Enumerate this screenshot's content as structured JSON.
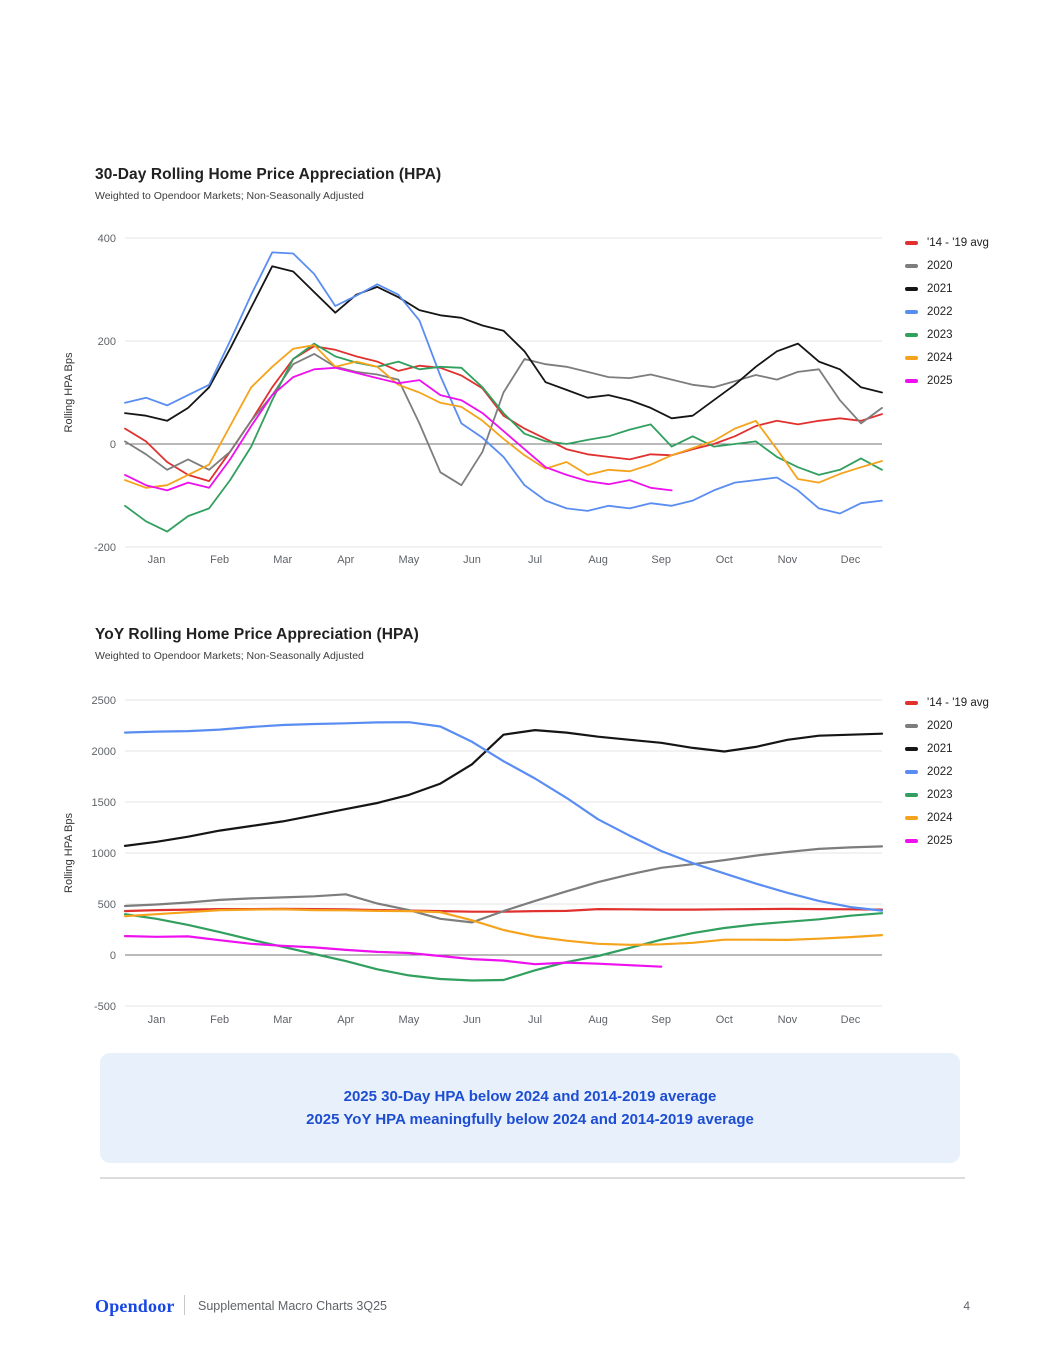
{
  "page": {
    "background": "#ffffff"
  },
  "chart_data": [
    {
      "type": "line",
      "title": "30-Day Rolling Home Price Appreciation (HPA)",
      "subtitle": "Weighted to Opendoor Markets; Non-Seasonally Adjusted",
      "ylabel": "Rolling HPA Bps",
      "x_tick_labels": [
        "Jan",
        "Feb",
        "Mar",
        "Apr",
        "May",
        "Jun",
        "Jul",
        "Aug",
        "Sep",
        "Oct",
        "Nov",
        "Dec"
      ],
      "xlim": [
        0,
        12
      ],
      "ylim": [
        -200,
        400
      ],
      "yticks": [
        400,
        200,
        0,
        -200
      ],
      "zero_line": 0,
      "grid": true,
      "legend_position": "right",
      "series": [
        {
          "name": "'14 - '19 avg",
          "color": "#e0312e",
          "x_start": 0,
          "x_step": 0.33333,
          "values": [
            30,
            5,
            -35,
            -60,
            -72,
            -15,
            45,
            110,
            165,
            190,
            183,
            170,
            160,
            142,
            152,
            148,
            133,
            108,
            55,
            30,
            10,
            -10,
            -20,
            -25,
            -30,
            -20,
            -22,
            -10,
            0,
            15,
            35,
            45,
            38,
            45,
            50,
            45,
            58
          ]
        },
        {
          "name": "2020",
          "color": "#7d7d7d",
          "x_start": 0,
          "x_step": 0.33333,
          "values": [
            5,
            -20,
            -50,
            -30,
            -50,
            -15,
            45,
            95,
            155,
            175,
            150,
            140,
            135,
            125,
            40,
            -55,
            -80,
            -15,
            100,
            165,
            155,
            150,
            140,
            130,
            128,
            135,
            125,
            115,
            110,
            122,
            134,
            125,
            140,
            145,
            85,
            40,
            70
          ]
        },
        {
          "name": "2021",
          "color": "#151515",
          "x_start": 0,
          "x_step": 0.33333,
          "values": [
            60,
            55,
            45,
            70,
            110,
            185,
            265,
            345,
            335,
            295,
            255,
            290,
            305,
            285,
            260,
            250,
            245,
            230,
            220,
            180,
            120,
            105,
            90,
            95,
            85,
            70,
            50,
            55,
            85,
            115,
            150,
            180,
            195,
            160,
            145,
            110,
            100
          ]
        },
        {
          "name": "2022",
          "color": "#5a8df2",
          "x_start": 0,
          "x_step": 0.33333,
          "values": [
            80,
            90,
            75,
            95,
            115,
            200,
            290,
            372,
            370,
            330,
            268,
            288,
            310,
            290,
            240,
            132,
            40,
            12,
            -25,
            -80,
            -110,
            -125,
            -130,
            -120,
            -125,
            -115,
            -120,
            -110,
            -90,
            -75,
            -70,
            -65,
            -90,
            -125,
            -135,
            -115,
            -110
          ]
        },
        {
          "name": "2023",
          "color": "#31a05f",
          "x_start": 0,
          "x_step": 0.33333,
          "values": [
            -120,
            -150,
            -170,
            -140,
            -125,
            -70,
            -5,
            85,
            165,
            195,
            170,
            158,
            150,
            160,
            145,
            150,
            148,
            110,
            60,
            20,
            5,
            0,
            8,
            15,
            28,
            38,
            -5,
            15,
            -5,
            0,
            5,
            -25,
            -45,
            -60,
            -50,
            -28,
            -50
          ]
        },
        {
          "name": "2024",
          "color": "#f5a31c",
          "x_start": 0,
          "x_step": 0.33333,
          "values": [
            -70,
            -85,
            -80,
            -60,
            -40,
            35,
            110,
            150,
            185,
            192,
            150,
            160,
            150,
            115,
            100,
            80,
            72,
            45,
            10,
            -22,
            -48,
            -35,
            -60,
            -50,
            -53,
            -40,
            -22,
            -8,
            6,
            30,
            45,
            -10,
            -68,
            -75,
            -58,
            -45,
            -33
          ]
        },
        {
          "name": "2025",
          "color": "#ee10ee",
          "x_start": 0,
          "x_step": 0.33333,
          "values": [
            -60,
            -80,
            -90,
            -75,
            -85,
            -30,
            35,
            95,
            130,
            145,
            148,
            138,
            128,
            118,
            124,
            95,
            85,
            60,
            25,
            -10,
            -45,
            -60,
            -72,
            -78,
            -70,
            -85,
            -90
          ]
        }
      ]
    },
    {
      "type": "line",
      "title": "YoY Rolling Home Price Appreciation (HPA)",
      "subtitle": "Weighted to Opendoor Markets; Non-Seasonally Adjusted",
      "ylabel": "Rolling HPA Bps",
      "x_tick_labels": [
        "Jan",
        "Feb",
        "Mar",
        "Apr",
        "May",
        "Jun",
        "Jul",
        "Aug",
        "Sep",
        "Oct",
        "Nov",
        "Dec"
      ],
      "xlim": [
        0,
        12
      ],
      "ylim": [
        -500,
        2500
      ],
      "yticks": [
        2500,
        2000,
        1500,
        1000,
        500,
        0,
        -500
      ],
      "zero_line": 0,
      "grid": true,
      "legend_position": "right",
      "series": [
        {
          "name": "'14 - '19 avg",
          "color": "#e0312e",
          "x_start": 0,
          "x_step": 0.5,
          "values": [
            430,
            440,
            445,
            450,
            450,
            452,
            450,
            448,
            440,
            435,
            430,
            425,
            425,
            430,
            432,
            450,
            448,
            445,
            445,
            448,
            450,
            452,
            450,
            448,
            445
          ]
        },
        {
          "name": "2020",
          "color": "#7d7d7d",
          "x_start": 0,
          "x_step": 0.5,
          "values": [
            480,
            495,
            515,
            540,
            555,
            565,
            575,
            595,
            505,
            440,
            355,
            320,
            430,
            530,
            625,
            715,
            790,
            855,
            890,
            930,
            975,
            1010,
            1040,
            1055,
            1065
          ]
        },
        {
          "name": "2021",
          "color": "#151515",
          "x_start": 0,
          "x_step": 0.5,
          "values": [
            1070,
            1110,
            1160,
            1220,
            1265,
            1310,
            1370,
            1430,
            1490,
            1570,
            1680,
            1870,
            2160,
            2205,
            2180,
            2140,
            2110,
            2080,
            2030,
            1995,
            2040,
            2110,
            2150,
            2160,
            2170
          ]
        },
        {
          "name": "2022",
          "color": "#5a8df2",
          "x_start": 0,
          "x_step": 0.5,
          "values": [
            2180,
            2190,
            2195,
            2210,
            2235,
            2255,
            2265,
            2272,
            2280,
            2282,
            2240,
            2090,
            1900,
            1730,
            1540,
            1330,
            1170,
            1020,
            900,
            800,
            700,
            610,
            530,
            470,
            435
          ]
        },
        {
          "name": "2023",
          "color": "#31a05f",
          "x_start": 0,
          "x_step": 0.5,
          "values": [
            400,
            355,
            295,
            225,
            150,
            80,
            10,
            -60,
            -140,
            -200,
            -235,
            -250,
            -245,
            -150,
            -70,
            -10,
            70,
            150,
            215,
            265,
            300,
            325,
            350,
            385,
            410
          ]
        },
        {
          "name": "2024",
          "color": "#f5a31c",
          "x_start": 0,
          "x_step": 0.5,
          "values": [
            380,
            400,
            420,
            440,
            445,
            448,
            440,
            438,
            432,
            430,
            420,
            340,
            245,
            180,
            140,
            110,
            100,
            105,
            120,
            150,
            150,
            148,
            160,
            175,
            195
          ]
        },
        {
          "name": "2025",
          "color": "#ee10ee",
          "x_start": 0,
          "x_step": 0.5,
          "values": [
            185,
            178,
            182,
            145,
            110,
            90,
            75,
            50,
            30,
            20,
            -10,
            -40,
            -55,
            -90,
            -75,
            -85,
            -100,
            -115
          ]
        }
      ]
    }
  ],
  "callout": {
    "lines": [
      "2025 30-Day HPA below 2024 and 2014-2019 average",
      "2025 YoY HPA meaningfully below 2024 and 2014-2019 average"
    ],
    "text_color": "#1d4ed1",
    "background": "#e8f0fb"
  },
  "footer": {
    "brand": "Opendoor",
    "label": "Supplemental Macro Charts 3Q25",
    "page_number": "4",
    "brand_color": "#1847e3"
  },
  "style_colors": {
    "gridline": "#e4e4e4",
    "zero_line": "#757575",
    "tick_label": "#5f6368",
    "axis_title": "#333333"
  }
}
